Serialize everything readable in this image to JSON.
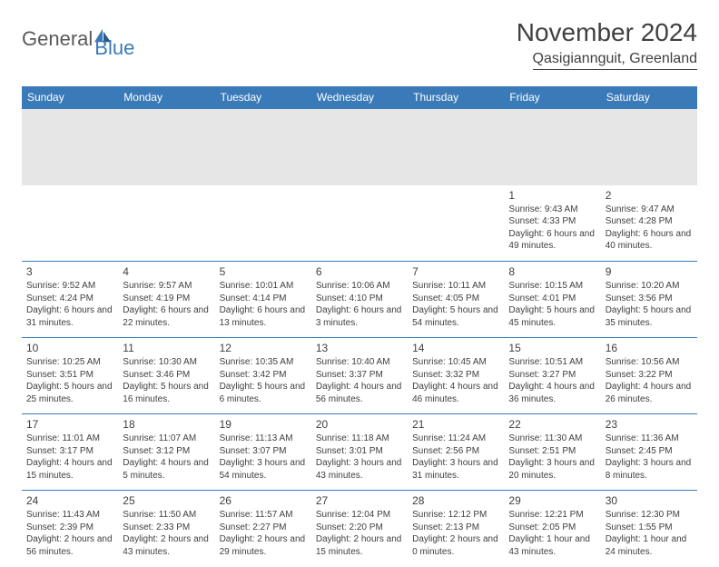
{
  "brand": {
    "part1": "General",
    "part2": "Blue",
    "logo_color": "#3a7ab8"
  },
  "title": "November 2024",
  "location": "Qasigiannguit, Greenland",
  "colors": {
    "header_bg": "#3a7ab8",
    "header_text": "#ffffff",
    "spacer_bg": "#e6e6e6",
    "cell_border": "#3a7ab8",
    "body_text": "#404040",
    "page_bg": "#ffffff"
  },
  "fonts": {
    "title_size": 28,
    "location_size": 16,
    "dayhead_size": 12,
    "cell_size": 10
  },
  "day_headers": [
    "Sunday",
    "Monday",
    "Tuesday",
    "Wednesday",
    "Thursday",
    "Friday",
    "Saturday"
  ],
  "weeks": [
    [
      null,
      null,
      null,
      null,
      null,
      {
        "n": "1",
        "sunrise": "9:43 AM",
        "sunset": "4:33 PM",
        "daylight": "6 hours and 49 minutes."
      },
      {
        "n": "2",
        "sunrise": "9:47 AM",
        "sunset": "4:28 PM",
        "daylight": "6 hours and 40 minutes."
      }
    ],
    [
      {
        "n": "3",
        "sunrise": "9:52 AM",
        "sunset": "4:24 PM",
        "daylight": "6 hours and 31 minutes."
      },
      {
        "n": "4",
        "sunrise": "9:57 AM",
        "sunset": "4:19 PM",
        "daylight": "6 hours and 22 minutes."
      },
      {
        "n": "5",
        "sunrise": "10:01 AM",
        "sunset": "4:14 PM",
        "daylight": "6 hours and 13 minutes."
      },
      {
        "n": "6",
        "sunrise": "10:06 AM",
        "sunset": "4:10 PM",
        "daylight": "6 hours and 3 minutes."
      },
      {
        "n": "7",
        "sunrise": "10:11 AM",
        "sunset": "4:05 PM",
        "daylight": "5 hours and 54 minutes."
      },
      {
        "n": "8",
        "sunrise": "10:15 AM",
        "sunset": "4:01 PM",
        "daylight": "5 hours and 45 minutes."
      },
      {
        "n": "9",
        "sunrise": "10:20 AM",
        "sunset": "3:56 PM",
        "daylight": "5 hours and 35 minutes."
      }
    ],
    [
      {
        "n": "10",
        "sunrise": "10:25 AM",
        "sunset": "3:51 PM",
        "daylight": "5 hours and 25 minutes."
      },
      {
        "n": "11",
        "sunrise": "10:30 AM",
        "sunset": "3:46 PM",
        "daylight": "5 hours and 16 minutes."
      },
      {
        "n": "12",
        "sunrise": "10:35 AM",
        "sunset": "3:42 PM",
        "daylight": "5 hours and 6 minutes."
      },
      {
        "n": "13",
        "sunrise": "10:40 AM",
        "sunset": "3:37 PM",
        "daylight": "4 hours and 56 minutes."
      },
      {
        "n": "14",
        "sunrise": "10:45 AM",
        "sunset": "3:32 PM",
        "daylight": "4 hours and 46 minutes."
      },
      {
        "n": "15",
        "sunrise": "10:51 AM",
        "sunset": "3:27 PM",
        "daylight": "4 hours and 36 minutes."
      },
      {
        "n": "16",
        "sunrise": "10:56 AM",
        "sunset": "3:22 PM",
        "daylight": "4 hours and 26 minutes."
      }
    ],
    [
      {
        "n": "17",
        "sunrise": "11:01 AM",
        "sunset": "3:17 PM",
        "daylight": "4 hours and 15 minutes."
      },
      {
        "n": "18",
        "sunrise": "11:07 AM",
        "sunset": "3:12 PM",
        "daylight": "4 hours and 5 minutes."
      },
      {
        "n": "19",
        "sunrise": "11:13 AM",
        "sunset": "3:07 PM",
        "daylight": "3 hours and 54 minutes."
      },
      {
        "n": "20",
        "sunrise": "11:18 AM",
        "sunset": "3:01 PM",
        "daylight": "3 hours and 43 minutes."
      },
      {
        "n": "21",
        "sunrise": "11:24 AM",
        "sunset": "2:56 PM",
        "daylight": "3 hours and 31 minutes."
      },
      {
        "n": "22",
        "sunrise": "11:30 AM",
        "sunset": "2:51 PM",
        "daylight": "3 hours and 20 minutes."
      },
      {
        "n": "23",
        "sunrise": "11:36 AM",
        "sunset": "2:45 PM",
        "daylight": "3 hours and 8 minutes."
      }
    ],
    [
      {
        "n": "24",
        "sunrise": "11:43 AM",
        "sunset": "2:39 PM",
        "daylight": "2 hours and 56 minutes."
      },
      {
        "n": "25",
        "sunrise": "11:50 AM",
        "sunset": "2:33 PM",
        "daylight": "2 hours and 43 minutes."
      },
      {
        "n": "26",
        "sunrise": "11:57 AM",
        "sunset": "2:27 PM",
        "daylight": "2 hours and 29 minutes."
      },
      {
        "n": "27",
        "sunrise": "12:04 PM",
        "sunset": "2:20 PM",
        "daylight": "2 hours and 15 minutes."
      },
      {
        "n": "28",
        "sunrise": "12:12 PM",
        "sunset": "2:13 PM",
        "daylight": "2 hours and 0 minutes."
      },
      {
        "n": "29",
        "sunrise": "12:21 PM",
        "sunset": "2:05 PM",
        "daylight": "1 hour and 43 minutes."
      },
      {
        "n": "30",
        "sunrise": "12:30 PM",
        "sunset": "1:55 PM",
        "daylight": "1 hour and 24 minutes."
      }
    ]
  ],
  "labels": {
    "sunrise": "Sunrise:",
    "sunset": "Sunset:",
    "daylight": "Daylight:"
  }
}
